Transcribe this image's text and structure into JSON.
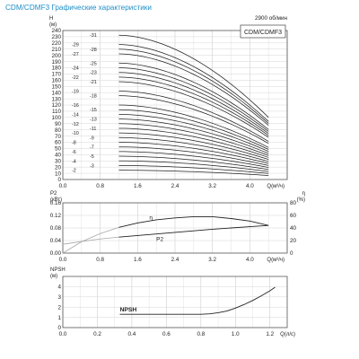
{
  "title": "CDM/CDMF3 Графические характеристики",
  "speed": "2900 об/мин",
  "model": "CDM/CDMF3",
  "chart_data": [
    {
      "type": "line",
      "name": "head",
      "ylabel": "H\n(м)",
      "xlabel": "Q(м³/ч)",
      "xlim": [
        0,
        4.8
      ],
      "ylim": [
        0,
        240
      ],
      "xticks": [
        "0.0",
        "0.8",
        "1.6",
        "2.4",
        "3.2",
        "4.0"
      ],
      "yticks": [
        0,
        10,
        20,
        30,
        40,
        50,
        60,
        70,
        80,
        90,
        100,
        110,
        120,
        130,
        140,
        150,
        160,
        170,
        180,
        190,
        200,
        210,
        220,
        230,
        240
      ],
      "grid": true,
      "x_start": 1.2,
      "x_end": 4.4,
      "stages": [
        "2",
        "3",
        "4",
        "5",
        "6",
        "7",
        "8",
        "9",
        "10",
        "11",
        "12",
        "13",
        "14",
        "15",
        "16",
        "18",
        "19",
        "21",
        "22",
        "23",
        "24",
        "25",
        "27",
        "28",
        "29",
        "31"
      ],
      "stage_head_at_start": [
        15,
        22.5,
        30,
        37.5,
        45,
        52.5,
        60,
        67.5,
        75,
        82.5,
        90,
        97.5,
        105,
        112.5,
        120,
        135,
        142.5,
        157.5,
        165,
        172.5,
        180,
        187.5,
        202.5,
        210,
        217.5,
        232.5
      ],
      "stage_head_at_end": [
        6.5,
        9.7,
        12.9,
        16.1,
        19.4,
        22.6,
        25.8,
        29,
        32.3,
        35.5,
        38.7,
        41.9,
        45.2,
        48.4,
        51.6,
        58.1,
        61.3,
        67.8,
        71,
        74.2,
        77.4,
        80.6,
        87.1,
        90.3,
        93.5,
        100
      ]
    },
    {
      "type": "line",
      "name": "power-efficiency",
      "ylabel_left": "P2\n(кВт)",
      "ylabel_right": "η\n(%)",
      "xlabel": "Q(м³/ч)",
      "xlim": [
        0,
        4.8
      ],
      "ylim_left": [
        0,
        0.16
      ],
      "ylim_right": [
        0,
        80
      ],
      "xticks": [
        "0.0",
        "0.8",
        "1.6",
        "2.4",
        "3.2",
        "4.0"
      ],
      "yticks_left": [
        "0.00",
        "0.04",
        "0.08",
        "0.12",
        "0.16"
      ],
      "yticks_right": [
        "0",
        "20",
        "40",
        "60",
        "80"
      ],
      "series": [
        {
          "name": "η",
          "axis": "right",
          "x": [
            0,
            0.4,
            0.8,
            1.2,
            1.6,
            2.0,
            2.4,
            2.8,
            3.2,
            3.6,
            4.0,
            4.4
          ],
          "y": [
            0,
            18,
            31,
            41,
            48,
            53,
            56,
            58,
            58,
            55,
            51,
            44
          ]
        },
        {
          "name": "P2",
          "axis": "left",
          "x": [
            0,
            0.4,
            0.8,
            1.2,
            1.6,
            2.0,
            2.4,
            2.8,
            3.2,
            3.6,
            4.0,
            4.4
          ],
          "y": [
            0.028,
            0.037,
            0.045,
            0.051,
            0.056,
            0.061,
            0.066,
            0.071,
            0.076,
            0.08,
            0.084,
            0.088
          ]
        }
      ]
    },
    {
      "type": "line",
      "name": "npsh",
      "ylabel": "NPSH\n(м)",
      "xlabel": "Q(л/с)",
      "xlim": [
        0,
        1.3
      ],
      "ylim": [
        0,
        5
      ],
      "xticks": [
        "0.0",
        "0.2",
        "0.4",
        "0.6",
        "0.8",
        "1.0",
        "1.2"
      ],
      "yticks": [
        "0",
        "1",
        "2",
        "3",
        "4"
      ],
      "series": [
        {
          "name": "NPSH",
          "x": [
            0.33,
            0.5,
            0.7,
            0.8,
            0.85,
            0.9,
            0.95,
            1.0,
            1.05,
            1.1,
            1.15,
            1.2,
            1.23
          ],
          "y": [
            1.3,
            1.3,
            1.3,
            1.3,
            1.34,
            1.45,
            1.62,
            1.9,
            2.25,
            2.65,
            3.1,
            3.6,
            3.95
          ]
        }
      ]
    }
  ]
}
